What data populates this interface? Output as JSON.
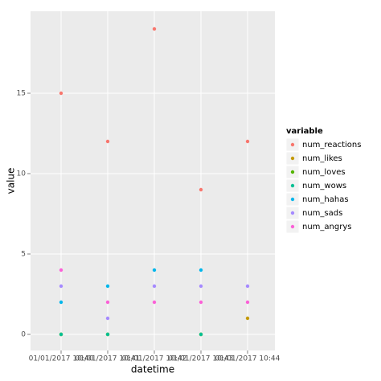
{
  "chart_data": {
    "type": "scatter",
    "x_label": "datetime",
    "y_label": "value",
    "legend_title": "variable",
    "categories": [
      "01/01/2017 10:40",
      "01/01/2017 10:41",
      "01/01/2017 10:42",
      "01/01/2017 10:43",
      "01/01/2017 10:44"
    ],
    "series": [
      {
        "name": "num_reactions",
        "color": "#F8766D",
        "values": [
          15,
          12,
          19,
          9,
          12
        ]
      },
      {
        "name": "num_likes",
        "color": "#C49A00",
        "values": [
          0,
          0,
          null,
          0,
          1
        ]
      },
      {
        "name": "num_loves",
        "color": "#53B400",
        "values": [
          0,
          0,
          null,
          0,
          null
        ]
      },
      {
        "name": "num_wows",
        "color": "#00C094",
        "values": [
          0,
          0,
          null,
          0,
          null
        ]
      },
      {
        "name": "num_hahas",
        "color": "#00B6EB",
        "values": [
          2,
          3,
          4,
          4,
          null
        ]
      },
      {
        "name": "num_sads",
        "color": "#A58AFF",
        "values": [
          3,
          1,
          3,
          3,
          3
        ]
      },
      {
        "name": "num_angrys",
        "color": "#FB61D7",
        "values": [
          4,
          2,
          2,
          2,
          2
        ]
      }
    ],
    "ylim": [
      -1,
      20.1
    ],
    "yticks": [
      0,
      5,
      10,
      15
    ],
    "grid": true,
    "legend": "right"
  }
}
